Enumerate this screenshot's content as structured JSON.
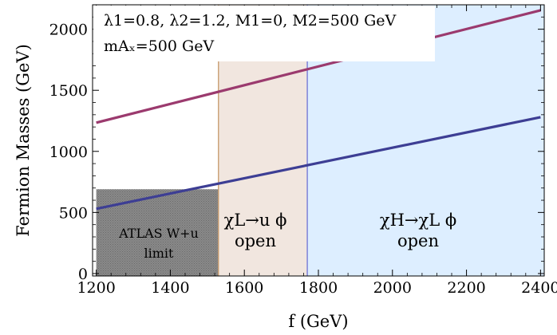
{
  "chart_data": {
    "type": "line",
    "title": "",
    "xlabel": "f (GeV)",
    "ylabel": "Fermion Masses (GeV)",
    "xlim": [
      1190,
      2410
    ],
    "ylim": [
      -20,
      2200
    ],
    "x_ticks": [
      1200,
      1400,
      1600,
      1800,
      2000,
      2200,
      2400
    ],
    "y_ticks": [
      0,
      500,
      1000,
      1500,
      2000
    ],
    "grid": false,
    "parameters_line1": "λ1=0.8, λ2=1.2, M1=0, M2=500 GeV",
    "parameters_line2": "mAₓ=500 GeV",
    "series": [
      {
        "color": "#9b3a6e",
        "x": [
          1200,
          2400
        ],
        "y": [
          1235,
          2155
        ]
      },
      {
        "color": "#3d3e94",
        "x": [
          1200,
          2400
        ],
        "y": [
          530,
          1280
        ]
      }
    ],
    "regions": [
      {
        "id": "atlas",
        "x0": 1200,
        "x1": 1530,
        "y0": -20,
        "y1": 690,
        "fill": "#7d7d7d",
        "line1": "ATLAS W+u",
        "line2": "limit"
      },
      {
        "id": "chiL",
        "x0": 1530,
        "x1": 1770,
        "y0": -20,
        "y1": 2200,
        "fill": "#f1e6df",
        "edge": "#c79a6c",
        "line1": "χL→u ϕ",
        "line2": "open"
      },
      {
        "id": "chiH",
        "x0": 1770,
        "x1": 2410,
        "y0": -20,
        "y1": 2200,
        "fill": "#ddeeff",
        "edge": "#6f72d4",
        "line1": "χH→χL ϕ",
        "line2": "open"
      }
    ]
  }
}
